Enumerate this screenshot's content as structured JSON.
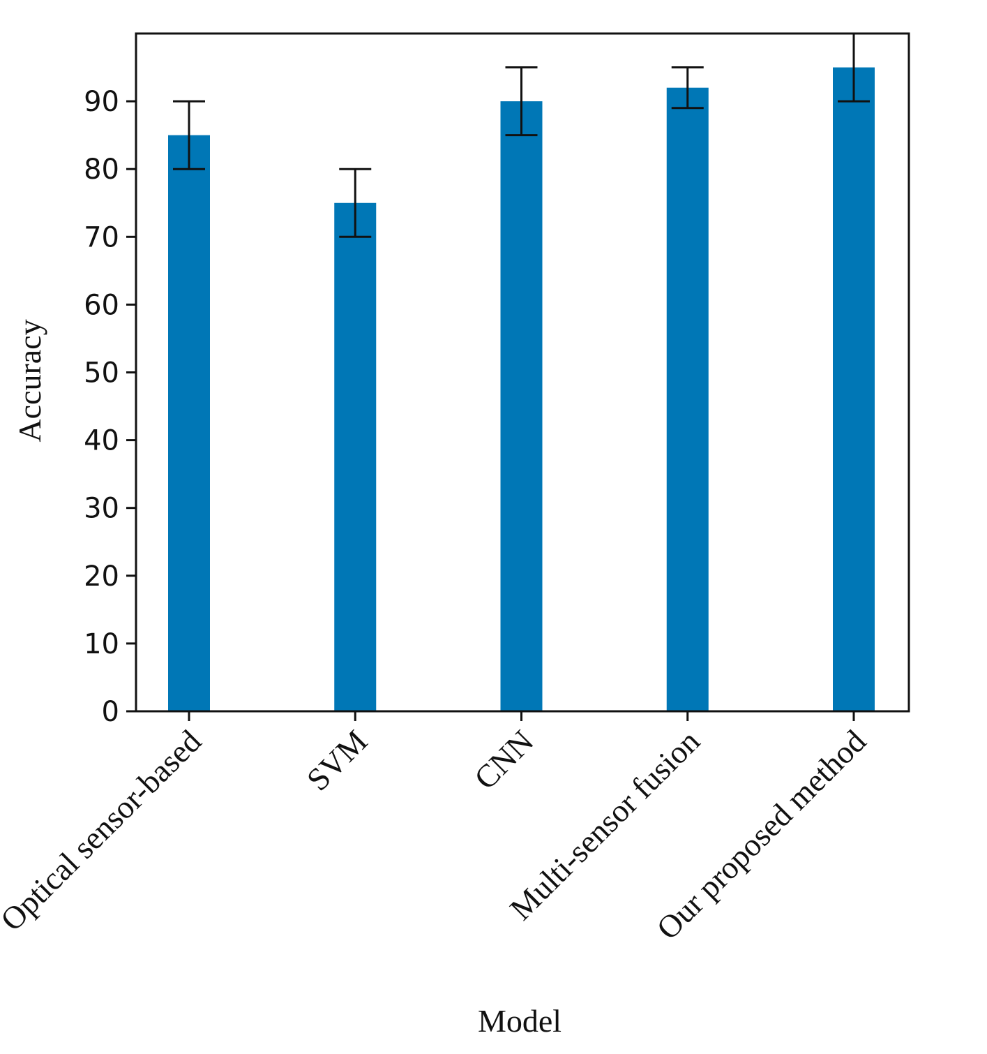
{
  "chart_data": {
    "type": "bar",
    "title": "",
    "xlabel": "Model",
    "ylabel": "Accuracy",
    "categories": [
      "Optical sensor-based",
      "SVM",
      "CNN",
      "Multi-sensor fusion",
      "Our proposed method"
    ],
    "series": [
      {
        "values": [
          85,
          75,
          90,
          92,
          95
        ],
        "errors": [
          5,
          5,
          5,
          3,
          5
        ]
      }
    ],
    "ylim": [
      0,
      100
    ],
    "yticks": [
      0,
      10,
      20,
      30,
      40,
      50,
      60,
      70,
      80,
      90
    ],
    "grid": false,
    "legend": "none",
    "bar_color": "#0077b6",
    "error_color": "#111111"
  }
}
